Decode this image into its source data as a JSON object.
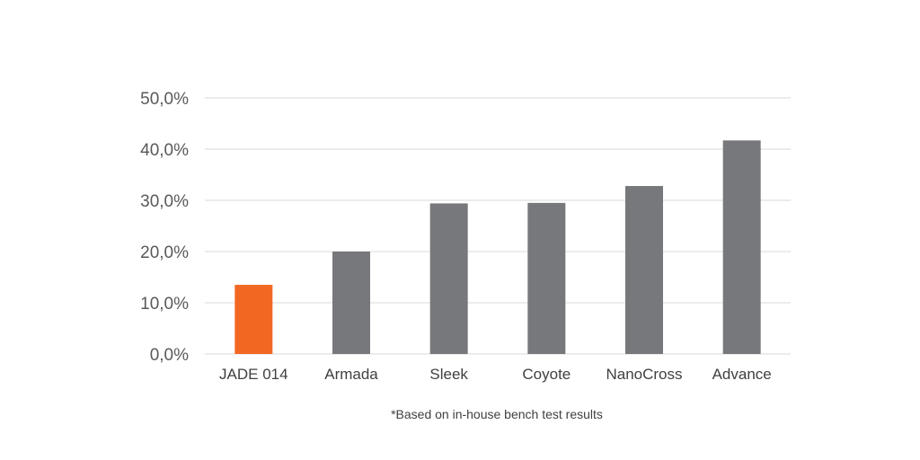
{
  "chart_data": {
    "type": "bar",
    "categories": [
      "JADE 014",
      "Armada",
      "Sleek",
      "Coyote",
      "NanoCross",
      "Advance"
    ],
    "values": [
      13.5,
      20.0,
      29.4,
      29.5,
      32.8,
      41.7
    ],
    "unit": "%",
    "ylim": [
      0,
      50
    ],
    "yticks": [
      "0,0%",
      "10,0%",
      "20,0%",
      "30,0%",
      "40,0%",
      "50,0%"
    ],
    "grid": true,
    "title": "",
    "xlabel": "",
    "ylabel": "",
    "colors": {
      "highlight": "#f26722",
      "default": "#77787b"
    },
    "highlight_index": 0
  },
  "footnote": "*Based on in-house bench test results"
}
